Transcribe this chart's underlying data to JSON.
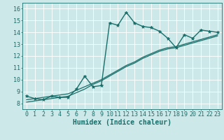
{
  "xlabel": "Humidex (Indice chaleur)",
  "background_color": "#cce8e8",
  "grid_color": "#ffffff",
  "line_color": "#1a6e6a",
  "xlim": [
    -0.5,
    23.5
  ],
  "ylim": [
    7.5,
    16.5
  ],
  "xticks": [
    0,
    1,
    2,
    3,
    4,
    5,
    6,
    7,
    8,
    9,
    10,
    11,
    12,
    13,
    14,
    15,
    16,
    17,
    18,
    19,
    20,
    21,
    22,
    23
  ],
  "yticks": [
    8,
    9,
    10,
    11,
    12,
    13,
    14,
    15,
    16
  ],
  "curve1_x": [
    0,
    1,
    2,
    3,
    4,
    5,
    6,
    7,
    8,
    9,
    10,
    11,
    12,
    13,
    14,
    15,
    16,
    17,
    18,
    19,
    20,
    21,
    22,
    23
  ],
  "curve1_y": [
    8.6,
    8.4,
    8.3,
    8.6,
    8.5,
    8.5,
    9.2,
    10.3,
    9.4,
    9.5,
    14.8,
    14.6,
    15.7,
    14.8,
    14.5,
    14.4,
    14.1,
    13.5,
    12.7,
    13.8,
    13.5,
    14.2,
    14.1,
    14.0
  ],
  "curve2_x": [
    0,
    1,
    2,
    3,
    4,
    5,
    6,
    7,
    8,
    9,
    10,
    11,
    12,
    13,
    14,
    15,
    16,
    17,
    18,
    19,
    20,
    21,
    22,
    23
  ],
  "curve2_y": [
    8.3,
    8.4,
    8.5,
    8.6,
    8.7,
    8.8,
    9.1,
    9.4,
    9.7,
    10.0,
    10.4,
    10.8,
    11.2,
    11.5,
    11.9,
    12.2,
    12.5,
    12.7,
    12.8,
    13.0,
    13.2,
    13.4,
    13.6,
    13.8
  ],
  "curve3_x": [
    0,
    1,
    2,
    3,
    4,
    5,
    6,
    7,
    8,
    9,
    10,
    11,
    12,
    13,
    14,
    15,
    16,
    17,
    18,
    19,
    20,
    21,
    22,
    23
  ],
  "curve3_y": [
    8.1,
    8.2,
    8.3,
    8.4,
    8.5,
    8.6,
    8.9,
    9.2,
    9.6,
    9.9,
    10.3,
    10.7,
    11.1,
    11.4,
    11.8,
    12.1,
    12.4,
    12.6,
    12.7,
    12.9,
    13.1,
    13.3,
    13.5,
    13.7
  ],
  "xlabel_fontsize": 7,
  "tick_fontsize": 6
}
